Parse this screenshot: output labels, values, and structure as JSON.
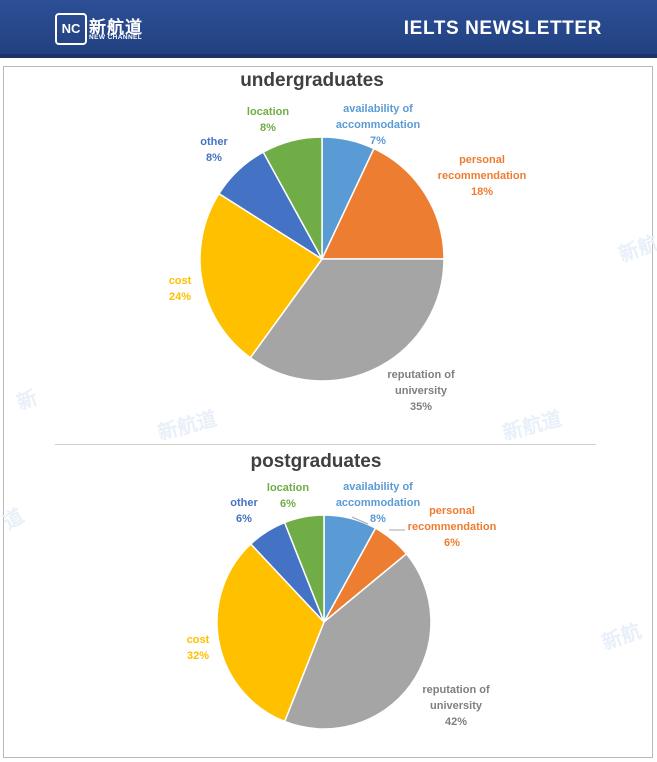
{
  "header": {
    "logo_text": "新航道",
    "logo_en": "NEW CHANNEL",
    "logo_mark": "NC",
    "title": "IELTS  NEWSLETTER"
  },
  "colors": {
    "header_bg": "#2a4b8f",
    "blue": "#5b9bd5",
    "orange": "#ed7d31",
    "gray": "#a5a5a5",
    "yellow": "#ffc000",
    "dark_blue": "#4472c4",
    "green": "#70ad47"
  },
  "chart_data": [
    {
      "type": "pie",
      "title": "undergraduates",
      "slices": [
        {
          "label": [
            "availability of",
            "accommodation"
          ],
          "value": 7,
          "pct_text": "7%",
          "color": "#5b9bd5"
        },
        {
          "label": [
            "personal",
            "recommendation"
          ],
          "value": 18,
          "pct_text": "18%",
          "color": "#ed7d31"
        },
        {
          "label": [
            "reputation of",
            "university"
          ],
          "value": 35,
          "pct_text": "35%",
          "color": "#a5a5a5"
        },
        {
          "label": [
            "cost"
          ],
          "value": 24,
          "pct_text": "24%",
          "color": "#ffc000"
        },
        {
          "label": [
            "other"
          ],
          "value": 8,
          "pct_text": "8%",
          "color": "#4472c4"
        },
        {
          "label": [
            "location"
          ],
          "value": 8,
          "pct_text": "8%",
          "color": "#70ad47"
        }
      ]
    },
    {
      "type": "pie",
      "title": "postgraduates",
      "slices": [
        {
          "label": [
            "availability of",
            "accommodation"
          ],
          "value": 8,
          "pct_text": "8%",
          "color": "#5b9bd5"
        },
        {
          "label": [
            "personal",
            "recommendation"
          ],
          "value": 6,
          "pct_text": "6%",
          "color": "#ed7d31"
        },
        {
          "label": [
            "reputation of",
            "university"
          ],
          "value": 42,
          "pct_text": "42%",
          "color": "#a5a5a5"
        },
        {
          "label": [
            "cost"
          ],
          "value": 32,
          "pct_text": "32%",
          "color": "#ffc000"
        },
        {
          "label": [
            "other"
          ],
          "value": 6,
          "pct_text": "6%",
          "color": "#4472c4"
        },
        {
          "label": [
            "location"
          ],
          "value": 6,
          "pct_text": "6%",
          "color": "#70ad47"
        }
      ]
    }
  ]
}
